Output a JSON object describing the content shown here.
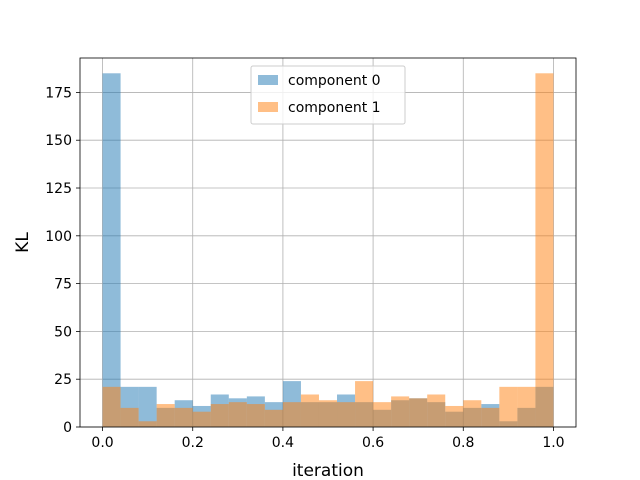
{
  "chart_data": {
    "type": "bar",
    "chart_subtype": "overlaid-histogram",
    "xlabel": "iteration",
    "ylabel": "KL",
    "xlim": [
      -0.05,
      1.05
    ],
    "ylim": [
      0,
      193
    ],
    "xticks": [
      0.0,
      0.2,
      0.4,
      0.6,
      0.8,
      1.0
    ],
    "xtick_labels": [
      "0.0",
      "0.2",
      "0.4",
      "0.6",
      "0.8",
      "1.0"
    ],
    "yticks": [
      0,
      25,
      50,
      75,
      100,
      125,
      150,
      175
    ],
    "ytick_labels": [
      "0",
      "25",
      "50",
      "75",
      "100",
      "125",
      "150",
      "175"
    ],
    "grid": true,
    "legend_position": "top-center",
    "bin_edges": [
      0.0,
      0.04,
      0.08,
      0.12,
      0.16,
      0.2,
      0.24,
      0.28,
      0.32,
      0.36,
      0.4,
      0.44,
      0.48,
      0.52,
      0.56,
      0.6,
      0.64,
      0.68,
      0.72,
      0.76,
      0.8,
      0.84,
      0.88,
      0.92,
      0.96,
      1.0
    ],
    "series": [
      {
        "name": "component 0",
        "color": "#1f77b4",
        "alpha": 0.5,
        "values": [
          185,
          21,
          21,
          10,
          14,
          11,
          17,
          15,
          16,
          13,
          24,
          13,
          13,
          17,
          13,
          9,
          14,
          15,
          13,
          8,
          10,
          12,
          3,
          10,
          21
        ]
      },
      {
        "name": "component 1",
        "color": "#ff7f0e",
        "alpha": 0.5,
        "values": [
          21,
          10,
          3,
          12,
          10,
          8,
          12,
          13,
          12,
          9,
          13,
          17,
          14,
          13,
          24,
          13,
          16,
          15,
          17,
          11,
          14,
          10,
          21,
          21,
          185
        ]
      }
    ]
  }
}
